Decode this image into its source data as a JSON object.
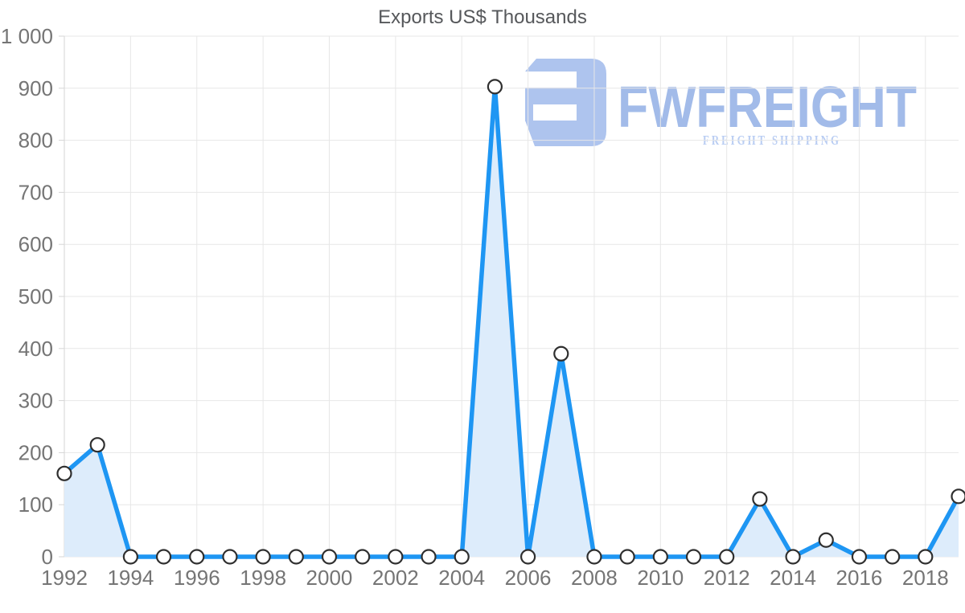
{
  "page": {
    "background": "#ffffff"
  },
  "logo": {
    "name": "FWFREIGHT",
    "tagline": "FREIGHT SHIPPING",
    "glyph_color": "#aec4ee",
    "text_color": "#a2bbe9",
    "tagline_color": "#b9cdf3"
  },
  "chart_data": {
    "type": "area",
    "title": "Exports US$ Thousands",
    "xlabel": "",
    "ylabel": "",
    "x": [
      1992,
      1993,
      1994,
      1995,
      1996,
      1997,
      1998,
      1999,
      2000,
      2001,
      2002,
      2003,
      2004,
      2005,
      2006,
      2007,
      2008,
      2009,
      2010,
      2011,
      2012,
      2013,
      2014,
      2015,
      2016,
      2017,
      2018,
      2019
    ],
    "series": [
      {
        "name": "Exports US$ Thousands",
        "values": [
          160,
          215,
          0,
          0,
          0,
          0,
          0,
          0,
          0,
          0,
          0,
          0,
          0,
          903,
          0,
          390,
          0,
          0,
          0,
          0,
          0,
          111,
          0,
          32,
          0,
          0,
          0,
          116
        ]
      }
    ],
    "ylim": [
      0,
      1000
    ],
    "y_tick_values": [
      0,
      100,
      200,
      300,
      400,
      500,
      600,
      700,
      800,
      900,
      1000
    ],
    "y_tick_labels": [
      "0",
      "100",
      "200",
      "300",
      "400",
      "500",
      "600",
      "700",
      "800",
      "900",
      "1 000"
    ],
    "x_tick_values": [
      1992,
      1994,
      1996,
      1998,
      2000,
      2002,
      2004,
      2006,
      2008,
      2010,
      2012,
      2014,
      2016,
      2018
    ],
    "x_tick_labels": [
      "1992",
      "1994",
      "1996",
      "1998",
      "2000",
      "2002",
      "2004",
      "2006",
      "2008",
      "2010",
      "2012",
      "2014",
      "2016",
      "2018"
    ],
    "grid": true,
    "legend": "none",
    "marker": "circle",
    "colors": {
      "line": "#1e96f3",
      "area": "#ddecfb",
      "marker_fill": "#ffffff",
      "marker_stroke": "#2f2f2f",
      "grid": "#e7e7e7",
      "axis": "#d6d6d6",
      "tick_label": "#757575",
      "title": "#56585b"
    }
  }
}
